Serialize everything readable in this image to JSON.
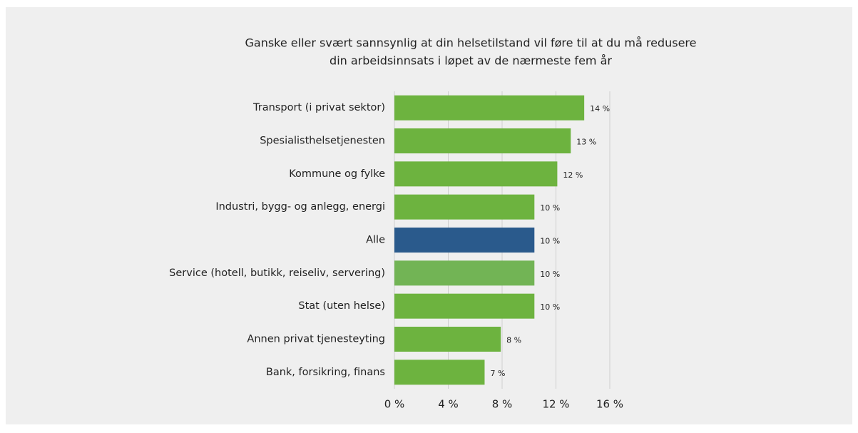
{
  "chart_data": {
    "type": "barh",
    "title": [
      "Ganske eller svært sannsynlig at din helsetilstand vil føre til at du må redusere",
      "din arbeidsinnsats i løpet av de nærmeste fem år"
    ],
    "categories": [
      "Transport (i privat sektor)",
      "Spesialisthelsetjenesten",
      "Kommune og fylke",
      "Industri, bygg- og anlegg, energi",
      "Alle",
      "Service (hotell, butikk, reiseliv, servering)",
      "Stat (uten helse)",
      "Annen privat tjenesteyting",
      "Bank, forsikring, finans"
    ],
    "values": [
      14.1,
      13.1,
      12.1,
      10.4,
      10.4,
      10.4,
      10.4,
      7.9,
      6.7
    ],
    "value_labels": [
      "14 %",
      "13 %",
      "12 %",
      "10 %",
      "10 %",
      "10 %",
      "10 %",
      "8 %",
      "7 %"
    ],
    "colors": [
      "#6db33f",
      "#6db33f",
      "#6db33f",
      "#6db33f",
      "#2a5a8c",
      "#72b455",
      "#6db33f",
      "#6db33f",
      "#6db33f"
    ],
    "xlim": [
      0,
      16
    ],
    "xticks": [
      {
        "value": 0,
        "label": "0 %"
      },
      {
        "value": 4,
        "label": "4 %"
      },
      {
        "value": 8,
        "label": "8 %"
      },
      {
        "value": 12,
        "label": "12 %"
      },
      {
        "value": 16,
        "label": "16 %"
      }
    ],
    "grid": true
  }
}
